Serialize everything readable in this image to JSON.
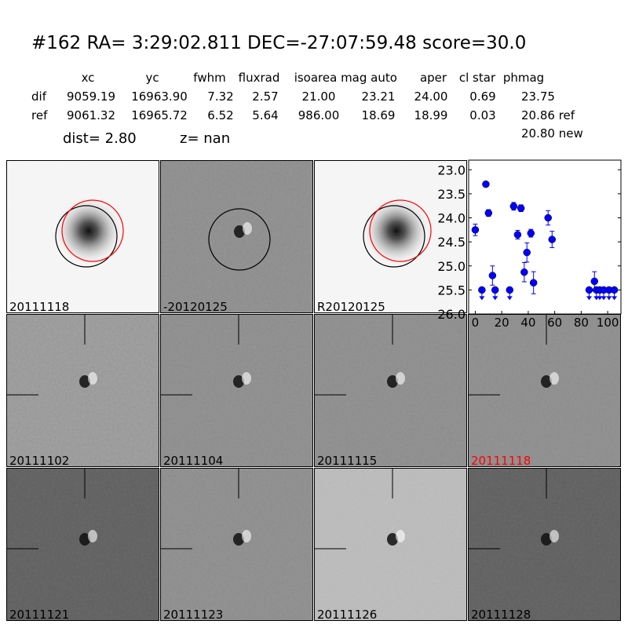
{
  "header": {
    "title": "#162   RA= 3:29:02.811 DEC=-27:07:59.48       score=30.0",
    "columns": [
      "xc",
      "yc",
      "fwhm",
      "fluxrad",
      "isoarea",
      "mag auto",
      "aper",
      "cl star",
      "phmag"
    ],
    "rows": [
      {
        "label": "dif",
        "values": [
          "9059.19",
          "16963.90",
          "7.32",
          "2.57",
          "21.00",
          "23.21",
          "24.00",
          "0.69",
          "23.75"
        ]
      },
      {
        "label": "ref",
        "values": [
          "9061.32",
          "16965.72",
          "6.52",
          "5.64",
          "986.00",
          "18.69",
          "18.99",
          "0.03",
          "20.86 ref"
        ]
      }
    ],
    "phmag_new": "20.80 new",
    "dist": "dist=  2.80",
    "z": "z=   nan"
  },
  "stamps": [
    {
      "label": "20111118",
      "label_color": "#000000",
      "kind": "ref"
    },
    {
      "label": "-20120125",
      "label_color": "#000000",
      "kind": "diff"
    },
    {
      "label": "R20120125",
      "label_color": "#000000",
      "kind": "ref"
    },
    {
      "label": "20111102",
      "label_color": "#000000",
      "kind": "noisy"
    },
    {
      "label": "20111104",
      "label_color": "#000000",
      "kind": "mid"
    },
    {
      "label": "20111115",
      "label_color": "#000000",
      "kind": "mid"
    },
    {
      "label": "20111118",
      "label_color": "#ff0000",
      "kind": "mid"
    },
    {
      "label": "20111121",
      "label_color": "#000000",
      "kind": "dark"
    },
    {
      "label": "20111123",
      "label_color": "#000000",
      "kind": "mid"
    },
    {
      "label": "20111126",
      "label_color": "#000000",
      "kind": "light"
    },
    {
      "label": "20111128",
      "label_color": "#000000",
      "kind": "dark"
    }
  ],
  "chart_data": {
    "type": "scatter",
    "xlim": [
      -5,
      110
    ],
    "ylim": [
      26.0,
      22.8
    ],
    "y_inverted": true,
    "xticks": [
      0,
      20,
      40,
      60,
      80,
      100
    ],
    "yticks": [
      "23.0",
      "23.5",
      "24.0",
      "24.5",
      "25.0",
      "25.5",
      "26.0"
    ],
    "color": "#0000ff",
    "points": [
      {
        "x": 0,
        "y": 24.25,
        "err": 0.12
      },
      {
        "x": 8,
        "y": 23.3,
        "err": 0.03
      },
      {
        "x": 10,
        "y": 23.9,
        "err": 0.07
      },
      {
        "x": 13,
        "y": 25.2,
        "err": 0.2
      },
      {
        "x": 29,
        "y": 23.76,
        "err": 0.08
      },
      {
        "x": 32,
        "y": 24.35,
        "err": 0.09
      },
      {
        "x": 34.5,
        "y": 23.8,
        "err": 0.07
      },
      {
        "x": 37,
        "y": 25.13,
        "err": 0.2
      },
      {
        "x": 39,
        "y": 24.72,
        "err": 0.2
      },
      {
        "x": 42,
        "y": 24.32,
        "err": 0.08
      },
      {
        "x": 44,
        "y": 25.35,
        "err": 0.23
      },
      {
        "x": 55,
        "y": 24.0,
        "err": 0.15
      },
      {
        "x": 58,
        "y": 24.45,
        "err": 0.17
      },
      {
        "x": 90,
        "y": 25.32,
        "err": 0.2
      }
    ],
    "upper_limits": [
      {
        "x": 5,
        "y": 25.5
      },
      {
        "x": 15,
        "y": 25.5
      },
      {
        "x": 26,
        "y": 25.5
      },
      {
        "x": 86,
        "y": 25.5
      },
      {
        "x": 91.5,
        "y": 25.5
      },
      {
        "x": 94,
        "y": 25.5
      },
      {
        "x": 97,
        "y": 25.5
      },
      {
        "x": 101,
        "y": 25.5
      },
      {
        "x": 105,
        "y": 25.5
      }
    ]
  }
}
